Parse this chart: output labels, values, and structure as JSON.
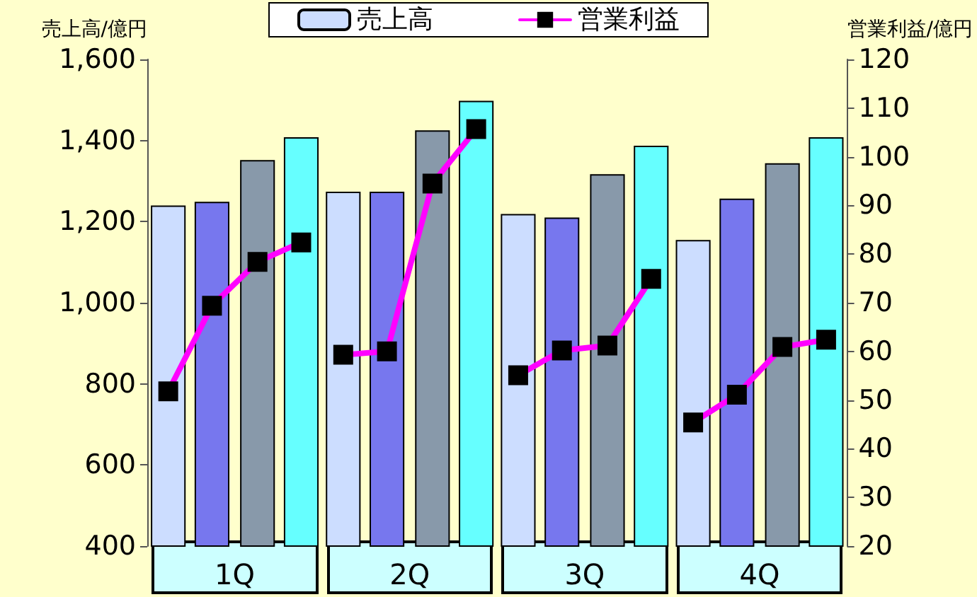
{
  "chart_data": {
    "type": "bar",
    "ylabel": "売上高/億円",
    "y2label": "営業利益/億円",
    "xlim": [
      0,
      4
    ],
    "xticks": [
      {
        "value": 0.5,
        "label": "1Q"
      },
      {
        "value": 1.5,
        "label": "2Q"
      },
      {
        "value": 2.5,
        "label": "3Q"
      },
      {
        "value": 3.5,
        "label": "4Q"
      }
    ],
    "ylim": [
      400,
      1600
    ],
    "yticks": [
      400,
      600,
      800,
      {
        "value": 1000,
        "label": "1,000"
      },
      {
        "value": 1200,
        "label": "1,200"
      },
      {
        "value": 1400,
        "label": "1,400"
      },
      {
        "value": 1600,
        "label": "1,600"
      }
    ],
    "y2lim": [
      20,
      120
    ],
    "y2ticks": [
      20,
      30,
      40,
      50,
      60,
      70,
      80,
      90,
      100,
      110,
      120
    ],
    "series": [
      {
        "name": "売上高",
        "color": "#ccddff",
        "x": [
          0.12,
          1.12,
          2.12,
          3.12
        ],
        "values": [
          1240,
          1274,
          1219,
          1155
        ]
      },
      {
        "color": "#7777ee",
        "x": [
          0.37,
          1.37,
          2.37,
          3.37
        ],
        "values": [
          1249,
          1274,
          1210,
          1257
        ]
      },
      {
        "color": "#8899aa",
        "x": [
          0.63,
          1.63,
          2.63,
          3.63
        ],
        "values": [
          1352,
          1425,
          1317,
          1344
        ]
      },
      {
        "color": "#66ffff",
        "x": [
          0.88,
          1.88,
          2.88,
          3.88
        ],
        "values": [
          1408,
          1498,
          1387,
          1408
        ]
      },
      {
        "name": "営業利益",
        "type": "line",
        "axis": "y2",
        "color": "#ff00ff",
        "x": [
          0.12,
          0.37,
          0.63,
          0.88
        ],
        "values": [
          51.8,
          69.4,
          78.4,
          82.4
        ]
      },
      {
        "type": "line",
        "axis": "y2",
        "color": "#ff00ff",
        "x": [
          1.12,
          1.37,
          1.63,
          1.88
        ],
        "values": [
          59.3,
          60.0,
          94.5,
          105.7
        ]
      },
      {
        "type": "line",
        "axis": "y2",
        "color": "#ff00ff",
        "x": [
          2.12,
          2.37,
          2.63,
          2.88
        ],
        "values": [
          55.1,
          60.2,
          61.2,
          74.9
        ]
      },
      {
        "type": "line",
        "axis": "y2",
        "color": "#ff00ff",
        "x": [
          3.12,
          3.37,
          3.63,
          3.88
        ],
        "values": [
          45.4,
          51.1,
          60.9,
          62.4
        ]
      }
    ],
    "marker": "square",
    "line_style": "solid",
    "legend": "top"
  }
}
